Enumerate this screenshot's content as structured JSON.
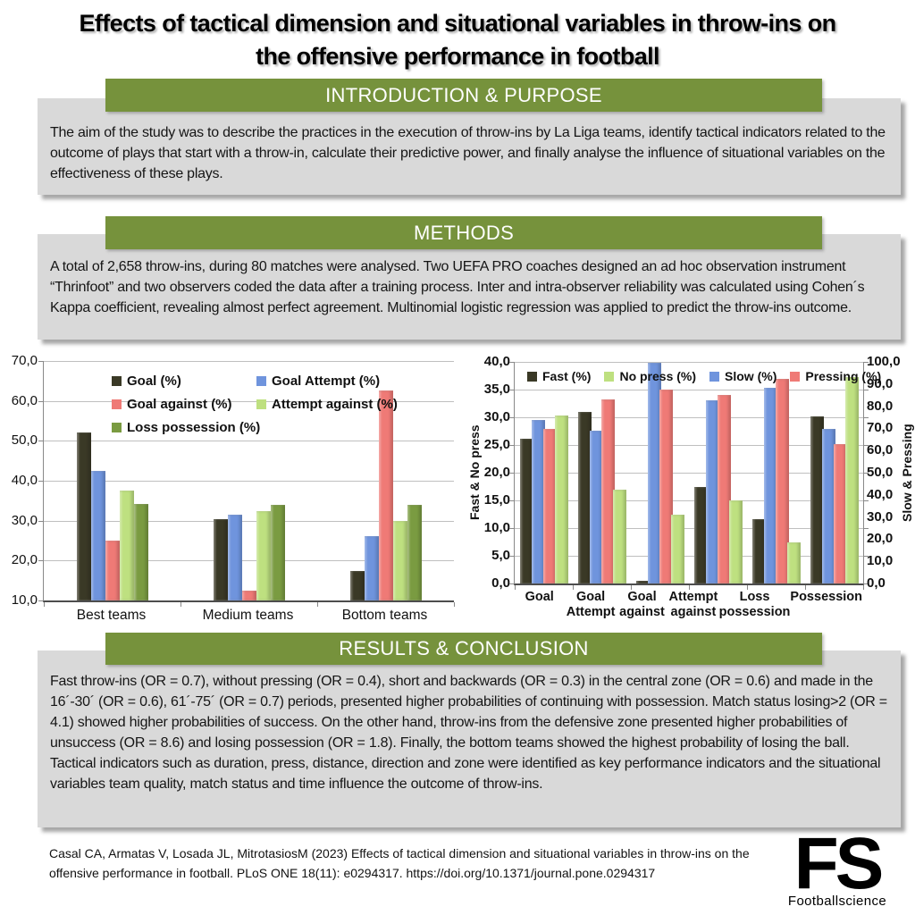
{
  "title": {
    "line1": "Effects of tactical dimension and situational variables in throw-ins on",
    "line2": "the offensive performance in football"
  },
  "sections": {
    "intro": {
      "header": "INTRODUCTION & PURPOSE",
      "body": "The aim of the study was to describe the practices in the execution of throw-ins by La Liga teams, identify tactical indicators related to the outcome of plays that start with a throw-in,  calculate their predictive power, and finally analyse the influence of situational variables on the effectiveness of these plays."
    },
    "methods": {
      "header": "METHODS",
      "body": "A total of 2,658 throw-ins,  during 80 matches were analysed. Two UEFA PRO coaches designed an ad hoc observation instrument “Thrinfoot” and two observers coded the data after a training process. Inter and intra-observer reliability was calculated using Cohen´s Kappa coefficient, revealing almost perfect agreement. Multinomial logistic regression was applied to predict the throw-ins outcome."
    },
    "results": {
      "header": "RESULTS & CONCLUSION",
      "body": "Fast throw-ins (OR = 0.7), without pressing (OR = 0.4), short and backwards (OR = 0.3) in the central zone (OR = 0.6) and made in the 16´-30´ (OR = 0.6), 61´-75´ (OR = 0.7) periods, presented higher probabilities of continuing with possession. Match status losing>2 (OR = 4.1) showed higher probabilities of success. On the other hand, throw-ins from the defensive zone presented higher probabilities of unsuccess (OR = 8.6) and losing possession (OR = 1.8). Finally, the bottom teams showed the highest probability of losing the ball. Tactical indicators such as duration, press, distance, direction and zone were identified as key performance indicators and the situational variables team quality, match status and time influence the outcome of throw-ins."
    }
  },
  "footer": {
    "citation": "Casal CA, Armatas V, Losada JL, MitrotasiosM (2023) Effects of tactical dimension and situational variables in throw-ins on the offensive performance in football. PLoS ONE 18(11): e0294317. https://doi.org/10.1371/journal.pone.0294317",
    "logo_text": "FS",
    "logo_subtext": "Footballscience"
  },
  "colors": {
    "header_green": "#76923C",
    "box_gray": "#D9D9D9",
    "series_dark": "#3A3926",
    "series_blue": "#6F94DD",
    "series_red": "#EF7A76",
    "series_light_green": "#BEE080",
    "series_olive": "#7A9B41",
    "gridline": "#BFBFBF",
    "axis": "#898989"
  },
  "chart_data": [
    {
      "type": "bar",
      "title": "",
      "categories": [
        "Best teams",
        "Medium teams",
        "Bottom teams"
      ],
      "series": [
        {
          "name": "Goal (%)",
          "color": "#3A3926",
          "values": [
            52.2,
            30.3,
            17.4
          ]
        },
        {
          "name": "Goal Attempt (%)",
          "color": "#6F94DD",
          "values": [
            42.4,
            31.5,
            26.1
          ]
        },
        {
          "name": "Goal against (%)",
          "color": "#EF7A76",
          "values": [
            25.0,
            12.5,
            62.6
          ]
        },
        {
          "name": "Attempt against (%)",
          "color": "#BEE080",
          "values": [
            37.5,
            32.5,
            30.0
          ]
        },
        {
          "name": "Loss possession (%)",
          "color": "#7A9B41",
          "values": [
            34.1,
            33.9,
            33.9
          ]
        }
      ],
      "xlabel": "",
      "ylabel": "",
      "ylim": [
        10,
        70
      ],
      "ytick_step": 10,
      "grid": true,
      "legend_position": "inside-top-left"
    },
    {
      "type": "bar",
      "title": "",
      "dual_axis": true,
      "categories": [
        [
          "Goal"
        ],
        [
          "Goal",
          "Attempt"
        ],
        [
          "Goal",
          "against"
        ],
        [
          "Attempt",
          "against"
        ],
        [
          "Loss",
          "possession"
        ],
        [
          "Possession"
        ]
      ],
      "series": [
        {
          "name": "Fast (%)",
          "axis": "left",
          "color": "#3A3926",
          "values": [
            26.1,
            31.0,
            0.5,
            17.5,
            11.6,
            30.2
          ]
        },
        {
          "name": "Slow (%)",
          "axis": "right",
          "color": "#6F94DD",
          "values": [
            73.9,
            69.0,
            99.5,
            82.5,
            88.4,
            69.8
          ]
        },
        {
          "name": "Pressing (%)",
          "axis": "right",
          "color": "#EF7A76",
          "values": [
            69.6,
            83.0,
            87.6,
            85.0,
            92.5,
            62.8
          ]
        },
        {
          "name": "No press (%)",
          "axis": "left",
          "color": "#BEE080",
          "values": [
            30.4,
            17.0,
            12.4,
            15.0,
            7.5,
            37.2
          ]
        }
      ],
      "legend_order": [
        "Fast (%)",
        "No press (%)",
        "Slow (%)",
        "Pressing (%)"
      ],
      "left_axis": {
        "title": "Fast & No press",
        "lim": [
          0,
          40
        ],
        "step": 5
      },
      "right_axis": {
        "title": "Slow & Pressing",
        "lim": [
          0,
          100
        ],
        "step": 10
      },
      "grid": true,
      "legend_position": "inside-top"
    }
  ]
}
